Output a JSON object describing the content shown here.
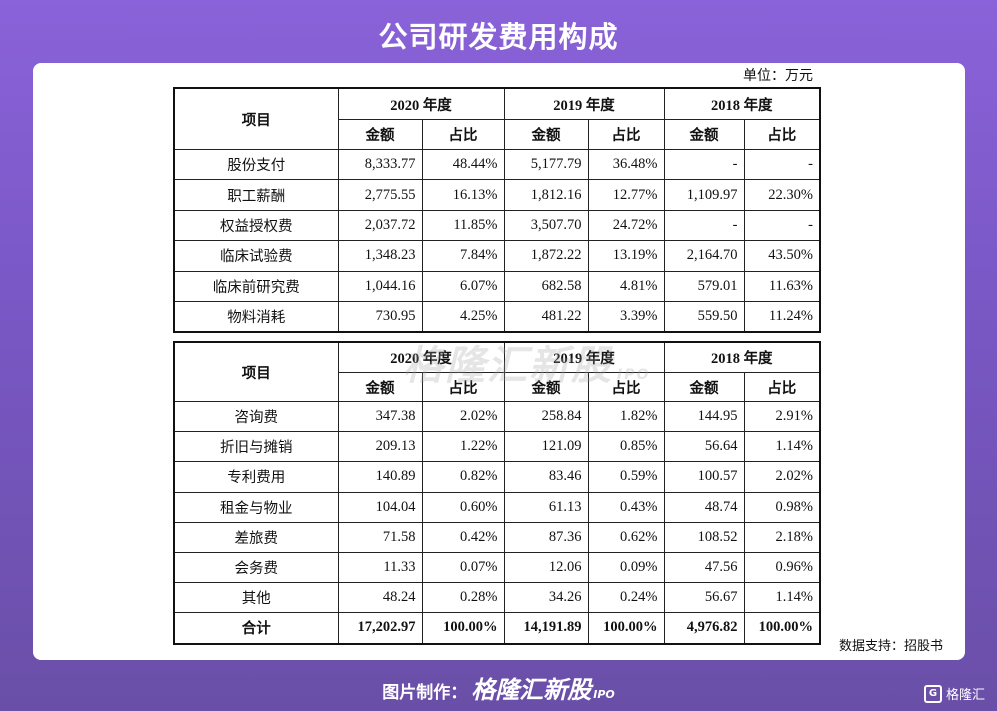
{
  "title": "公司研发费用构成",
  "unit": "单位：万元",
  "header": {
    "item": "项目",
    "years": [
      "2020 年度",
      "2019 年度",
      "2018 年度"
    ],
    "amount": "金额",
    "ratio": "占比"
  },
  "table1": [
    {
      "item": "股份支付",
      "v": [
        "8,333.77",
        "48.44%",
        "5,177.79",
        "36.48%",
        "-",
        "-"
      ]
    },
    {
      "item": "职工薪酬",
      "v": [
        "2,775.55",
        "16.13%",
        "1,812.16",
        "12.77%",
        "1,109.97",
        "22.30%"
      ]
    },
    {
      "item": "权益授权费",
      "v": [
        "2,037.72",
        "11.85%",
        "3,507.70",
        "24.72%",
        "-",
        "-"
      ]
    },
    {
      "item": "临床试验费",
      "v": [
        "1,348.23",
        "7.84%",
        "1,872.22",
        "13.19%",
        "2,164.70",
        "43.50%"
      ]
    },
    {
      "item": "临床前研究费",
      "v": [
        "1,044.16",
        "6.07%",
        "682.58",
        "4.81%",
        "579.01",
        "11.63%"
      ]
    },
    {
      "item": "物料消耗",
      "v": [
        "730.95",
        "4.25%",
        "481.22",
        "3.39%",
        "559.50",
        "11.24%"
      ]
    }
  ],
  "table2": [
    {
      "item": "咨询费",
      "v": [
        "347.38",
        "2.02%",
        "258.84",
        "1.82%",
        "144.95",
        "2.91%"
      ]
    },
    {
      "item": "折旧与摊销",
      "v": [
        "209.13",
        "1.22%",
        "121.09",
        "0.85%",
        "56.64",
        "1.14%"
      ]
    },
    {
      "item": "专利费用",
      "v": [
        "140.89",
        "0.82%",
        "83.46",
        "0.59%",
        "100.57",
        "2.02%"
      ]
    },
    {
      "item": "租金与物业",
      "v": [
        "104.04",
        "0.60%",
        "61.13",
        "0.43%",
        "48.74",
        "0.98%"
      ]
    },
    {
      "item": "差旅费",
      "v": [
        "71.58",
        "0.42%",
        "87.36",
        "0.62%",
        "108.52",
        "2.18%"
      ]
    },
    {
      "item": "会务费",
      "v": [
        "11.33",
        "0.07%",
        "12.06",
        "0.09%",
        "47.56",
        "0.96%"
      ]
    },
    {
      "item": "其他",
      "v": [
        "48.24",
        "0.28%",
        "34.26",
        "0.24%",
        "56.67",
        "1.14%"
      ]
    }
  ],
  "total": {
    "item": "合计",
    "v": [
      "17,202.97",
      "100.00%",
      "14,191.89",
      "100.00%",
      "4,976.82",
      "100.00%"
    ]
  },
  "source": "数据支持：招股书",
  "watermark": {
    "brand": "格隆汇新股",
    "tag": "IPO"
  },
  "footer": {
    "label": "图片制作：",
    "brand": "格隆汇新股",
    "tag": "IPO"
  },
  "corner_logo": {
    "icon": "G",
    "text": "格隆汇"
  }
}
